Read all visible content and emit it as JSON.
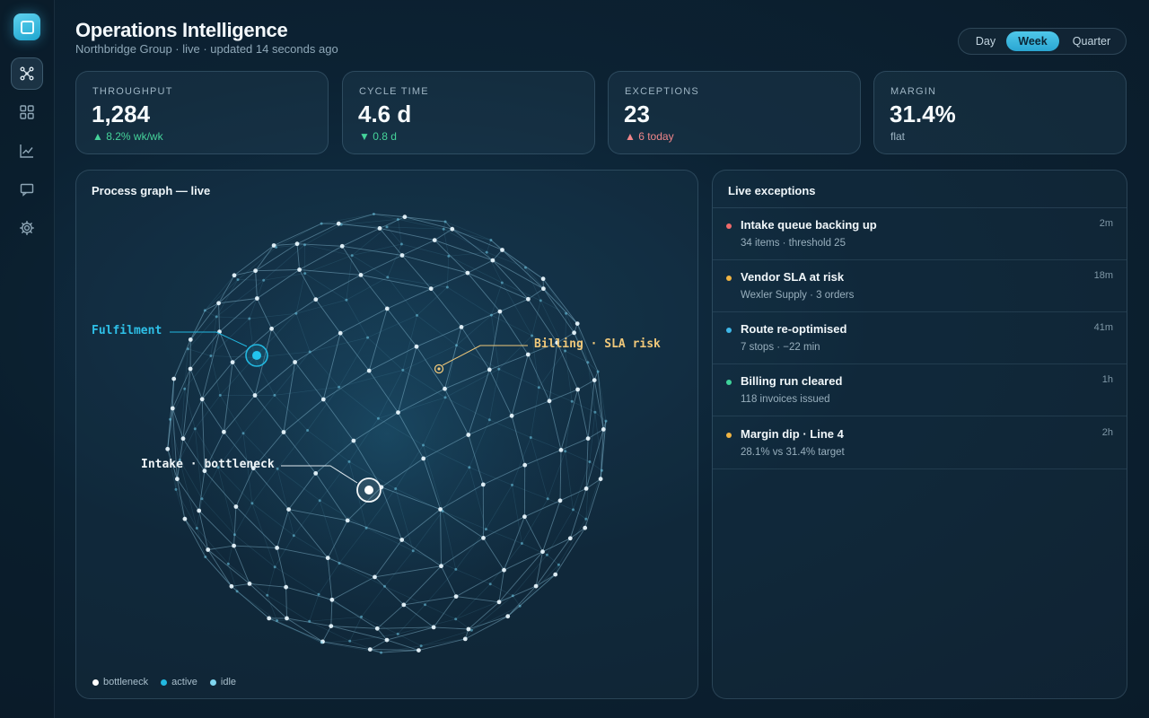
{
  "app": {
    "title": "Operations Intelligence",
    "subtitle": "Northbridge Group · live · updated 14 seconds ago"
  },
  "sidebar": {
    "items": [
      {
        "icon": "network-icon",
        "active": true
      },
      {
        "icon": "grid-icon",
        "active": false
      },
      {
        "icon": "chart-icon",
        "active": false
      },
      {
        "icon": "message-icon",
        "active": false
      },
      {
        "icon": "gear-icon",
        "active": false
      }
    ]
  },
  "range": {
    "options": [
      "Day",
      "Week",
      "Quarter"
    ],
    "selected": "Week"
  },
  "kpis": [
    {
      "label": "THROUGHPUT",
      "value": "1,284",
      "delta": "▲ 8.2% wk/wk",
      "tone": "up-green"
    },
    {
      "label": "CYCLE TIME",
      "value": "4.6 d",
      "delta": "▼ 0.8 d",
      "tone": "down-green"
    },
    {
      "label": "EXCEPTIONS",
      "value": "23",
      "delta": "▲ 6 today",
      "tone": "up-red"
    },
    {
      "label": "MARGIN",
      "value": "31.4%",
      "delta": "flat",
      "tone": "flat"
    }
  ],
  "graph": {
    "title": "Process graph — live",
    "annotations": {
      "fulfilment": "Fulfilment",
      "billing": "Billing · SLA risk",
      "intake": "Intake · bottleneck"
    },
    "legend": [
      "bottleneck",
      "active",
      "idle"
    ],
    "colors": {
      "bottleneck": "#ffffff",
      "active": "#22b8e0",
      "idle": "#7fd6f0",
      "risk": "#f0c87a"
    }
  },
  "exceptions": {
    "title": "Live exceptions",
    "items": [
      {
        "title": "Intake queue backing up",
        "detail": "34 items · threshold 25",
        "ago": "2m",
        "color": "#f06a6a"
      },
      {
        "title": "Vendor SLA at risk",
        "detail": "Wexler Supply · 3 orders",
        "ago": "18m",
        "color": "#f0b443"
      },
      {
        "title": "Route re-optimised",
        "detail": "7 stops · −22 min",
        "ago": "41m",
        "color": "#3fb7e8"
      },
      {
        "title": "Billing run cleared",
        "detail": "118 invoices issued",
        "ago": "1h",
        "color": "#3fd39a"
      },
      {
        "title": "Margin dip · Line 4",
        "detail": "28.1% vs 31.4% target",
        "ago": "2h",
        "color": "#f0b443"
      }
    ]
  }
}
